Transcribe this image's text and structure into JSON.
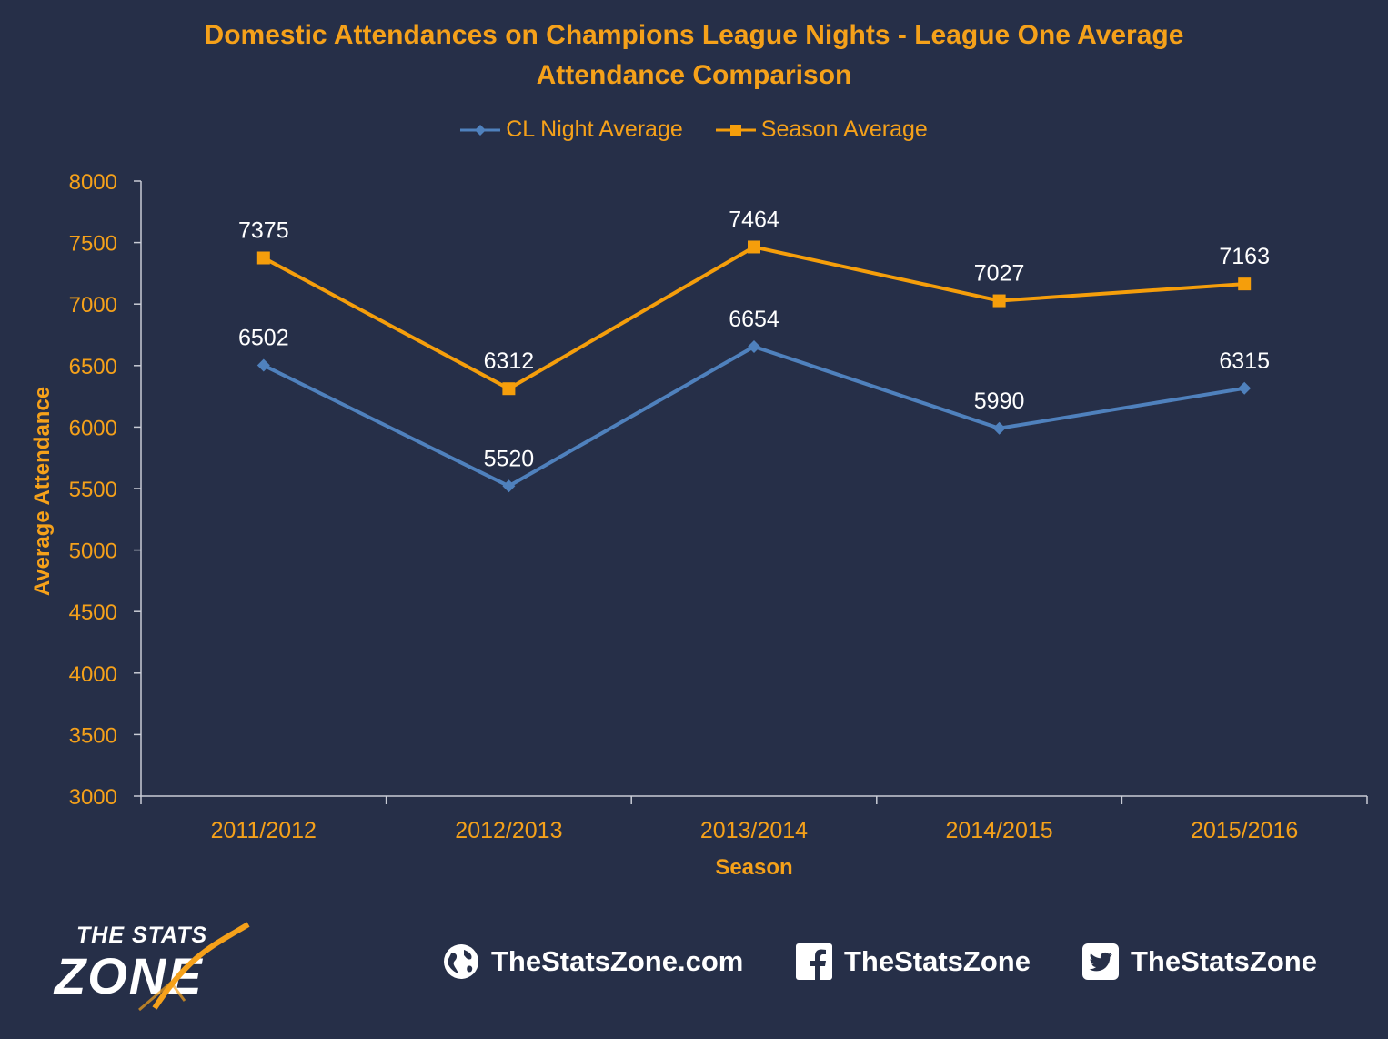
{
  "chart_data": {
    "type": "line",
    "title": "Domestic Attendances on Champions League Nights - League One Average Attendance Comparison",
    "title_lines": [
      "Domestic Attendances on Champions League Nights - League One Average",
      "Attendance Comparison"
    ],
    "xlabel": "Season",
    "ylabel": "Average Attendance",
    "categories": [
      "2011/2012",
      "2012/2013",
      "2013/2014",
      "2014/2015",
      "2015/2016"
    ],
    "ylim": [
      3000,
      8000
    ],
    "yticks": [
      3000,
      3500,
      4000,
      4500,
      5000,
      5500,
      6000,
      6500,
      7000,
      7500,
      8000
    ],
    "grid": false,
    "legend_position": "top",
    "series": [
      {
        "name": "CL Night Average",
        "color": "#4f81bd",
        "marker": "diamond",
        "values": [
          6502,
          5520,
          6654,
          5990,
          6315
        ]
      },
      {
        "name": "Season Average",
        "color": "#f59e0b",
        "marker": "square",
        "values": [
          7375,
          6312,
          7464,
          7027,
          7163
        ]
      }
    ]
  },
  "colors": {
    "background": "#262f48",
    "accent": "#f5a11a",
    "text_light": "#ffffff",
    "axis": "#c8ccd6"
  },
  "footer": {
    "logo_top": "THE STATS",
    "logo_bottom": "ZONE",
    "website": "TheStatsZone.com",
    "website_icon": "globe-icon",
    "facebook": "TheStatsZone",
    "facebook_icon": "facebook-icon",
    "twitter": "TheStatsZone",
    "twitter_icon": "twitter-icon"
  }
}
